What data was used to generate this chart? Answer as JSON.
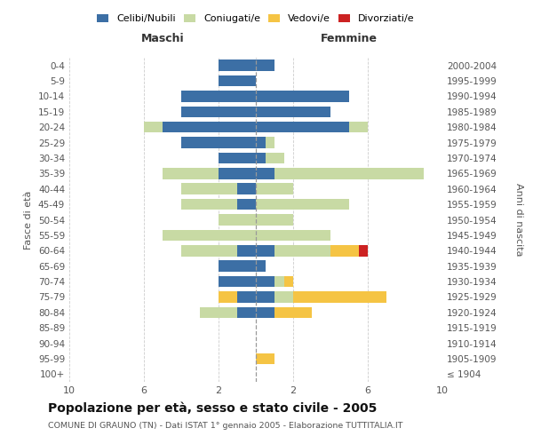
{
  "age_groups": [
    "100+",
    "95-99",
    "90-94",
    "85-89",
    "80-84",
    "75-79",
    "70-74",
    "65-69",
    "60-64",
    "55-59",
    "50-54",
    "45-49",
    "40-44",
    "35-39",
    "30-34",
    "25-29",
    "20-24",
    "15-19",
    "10-14",
    "5-9",
    "0-4"
  ],
  "birth_years": [
    "≤ 1904",
    "1905-1909",
    "1910-1914",
    "1915-1919",
    "1920-1924",
    "1925-1929",
    "1930-1934",
    "1935-1939",
    "1940-1944",
    "1945-1949",
    "1950-1954",
    "1955-1959",
    "1960-1964",
    "1965-1969",
    "1970-1974",
    "1975-1979",
    "1980-1984",
    "1985-1989",
    "1990-1994",
    "1995-1999",
    "2000-2004"
  ],
  "colors": {
    "celibi": "#3c6fa5",
    "coniugati": "#c8daa4",
    "vedovi": "#f5c444",
    "divorziati": "#cc2222"
  },
  "maschi": {
    "celibi": [
      0,
      0,
      0,
      0,
      1,
      1,
      2,
      2,
      1,
      0,
      0,
      1,
      1,
      2,
      2,
      4,
      5,
      4,
      4,
      2,
      2
    ],
    "coniugati": [
      0,
      0,
      0,
      0,
      2,
      0,
      0,
      0,
      3,
      5,
      2,
      3,
      3,
      3,
      0,
      0,
      1,
      0,
      0,
      0,
      0
    ],
    "vedovi": [
      0,
      0,
      0,
      0,
      0,
      1,
      0,
      0,
      0,
      0,
      0,
      0,
      0,
      0,
      0,
      0,
      0,
      0,
      0,
      0,
      0
    ],
    "divorziati": [
      0,
      0,
      0,
      0,
      0,
      0,
      0,
      0,
      0,
      0,
      0,
      0,
      0,
      0,
      0,
      0,
      0,
      0,
      0,
      0,
      0
    ]
  },
  "femmine": {
    "celibi": [
      0,
      0,
      0,
      0,
      1,
      1,
      1,
      0.5,
      1,
      0,
      0,
      0,
      0,
      1,
      0.5,
      0.5,
      5,
      4,
      5,
      0,
      1
    ],
    "coniugati": [
      0,
      0,
      0,
      0,
      0,
      1,
      0.5,
      0,
      3,
      4,
      2,
      5,
      2,
      8,
      1,
      0.5,
      1,
      0,
      0,
      0,
      0
    ],
    "vedovi": [
      0,
      1,
      0,
      0,
      2,
      5,
      0.5,
      0,
      1.5,
      0,
      0,
      0,
      0,
      0,
      0,
      0,
      0,
      0,
      0,
      0,
      0
    ],
    "divorziati": [
      0,
      0,
      0,
      0,
      0,
      0,
      0,
      0,
      0.5,
      0,
      0,
      0,
      0,
      0,
      0,
      0,
      0,
      0,
      0,
      0,
      0
    ]
  },
  "xlim": 10,
  "title": "Popolazione per età, sesso e stato civile - 2005",
  "subtitle": "COMUNE DI GRAUNO (TN) - Dati ISTAT 1° gennaio 2005 - Elaborazione TUTTITALIA.IT",
  "ylabel_left": "Fasce di età",
  "ylabel_right": "Anni di nascita",
  "xlabel_maschi": "Maschi",
  "xlabel_femmine": "Femmine",
  "background_color": "#ffffff",
  "grid_color": "#cccccc",
  "xticks": [
    -10,
    -6,
    -2,
    2,
    6,
    10
  ],
  "xticklabels": [
    "10",
    "6",
    "2",
    "2",
    "6",
    "10"
  ]
}
